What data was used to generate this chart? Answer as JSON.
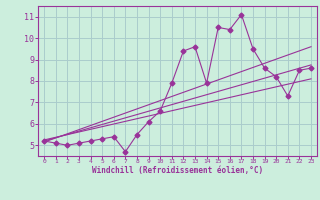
{
  "bg_color": "#cceedd",
  "grid_color": "#aacccc",
  "line_color": "#993399",
  "xlabel": "Windchill (Refroidissement éolien,°C)",
  "xlabel_color": "#993399",
  "tick_color": "#993399",
  "spine_color": "#993399",
  "xlim_min": -0.5,
  "xlim_max": 23.5,
  "ylim_min": 4.5,
  "ylim_max": 11.5,
  "xticks": [
    0,
    1,
    2,
    3,
    4,
    5,
    6,
    7,
    8,
    9,
    10,
    11,
    12,
    13,
    14,
    15,
    16,
    17,
    18,
    19,
    20,
    21,
    22,
    23
  ],
  "yticks": [
    5,
    6,
    7,
    8,
    9,
    10,
    11
  ],
  "series_x": [
    0,
    1,
    2,
    3,
    4,
    5,
    6,
    7,
    8,
    9,
    10,
    11,
    12,
    13,
    14,
    15,
    16,
    17,
    18,
    19,
    20,
    21,
    22,
    23
  ],
  "series_y": [
    5.2,
    5.1,
    5.0,
    5.1,
    5.2,
    5.3,
    5.4,
    4.7,
    5.5,
    6.1,
    6.6,
    7.9,
    9.4,
    9.6,
    7.9,
    10.5,
    10.4,
    11.1,
    9.5,
    8.6,
    8.2,
    7.3,
    8.5,
    8.6
  ],
  "reg_lines": [
    {
      "x0": 0,
      "y0": 5.15,
      "x1": 23,
      "y1": 9.6
    },
    {
      "x0": 0,
      "y0": 5.2,
      "x1": 23,
      "y1": 8.75
    },
    {
      "x0": 0,
      "y0": 5.25,
      "x1": 23,
      "y1": 8.1
    }
  ]
}
